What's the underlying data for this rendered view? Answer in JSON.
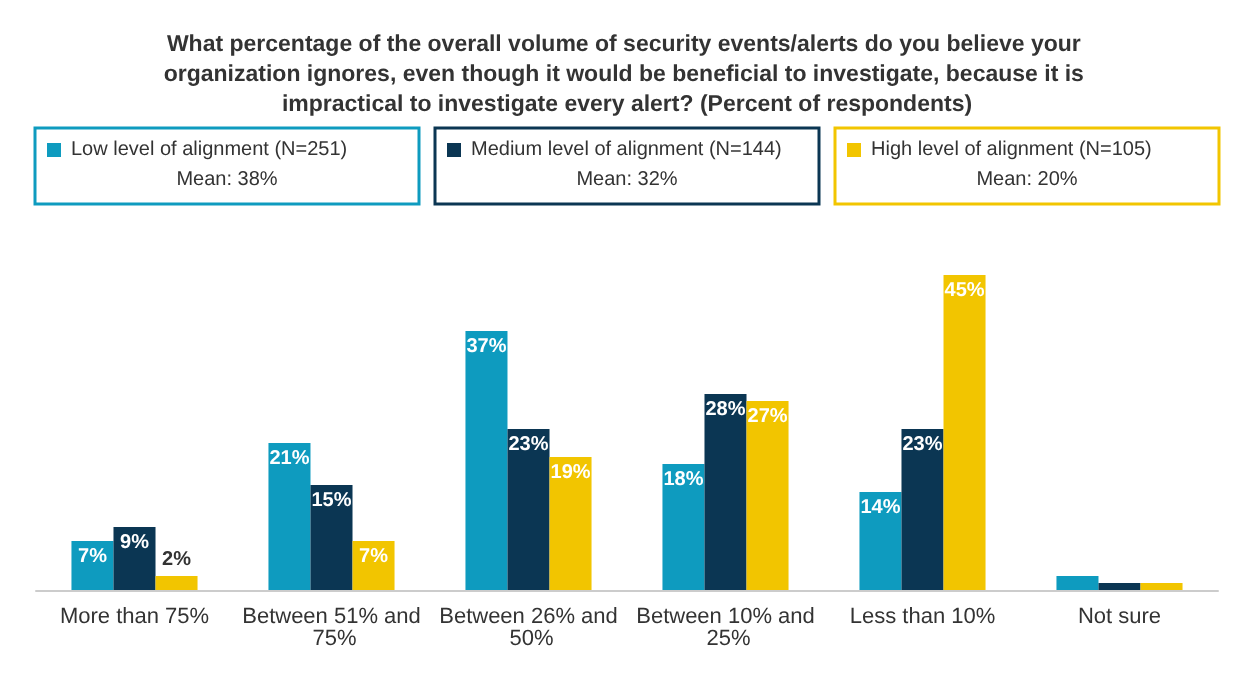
{
  "chart_data": {
    "type": "bar",
    "title": "What percentage of the overall volume of security events/alerts do you believe your organization ignores, even though it would be beneficial to investigate, because it is impractical to investigate every alert? (Percent of respondents)",
    "categories": [
      "More than 75%",
      "Between 51% and 75%",
      "Between 26% and 50%",
      "Between 10% and 25%",
      "Less than 10%",
      "Not sure"
    ],
    "series": [
      {
        "name": "Low level of alignment (N=251)",
        "color": "#0e9bbf",
        "values": [
          7,
          21,
          37,
          18,
          14,
          2
        ],
        "value_labels": [
          "7%",
          "21%",
          "37%",
          "18%",
          "14%",
          null
        ]
      },
      {
        "name": "Medium level of alignment (N=144)",
        "color": "#0b3653",
        "values": [
          9,
          15,
          23,
          28,
          23,
          1
        ],
        "value_labels": [
          "9%",
          "15%",
          "23%",
          "28%",
          "23%",
          null
        ]
      },
      {
        "name": "High level of alignment (N=105)",
        "color": "#f2c500",
        "values": [
          2,
          7,
          19,
          27,
          45,
          1
        ],
        "value_labels": [
          "2%",
          "7%",
          "19%",
          "27%",
          "45%",
          null
        ]
      }
    ],
    "annotations": [
      "Mean: 38%",
      "Mean: 32%",
      "Mean: 20%"
    ],
    "legend": "top"
  }
}
